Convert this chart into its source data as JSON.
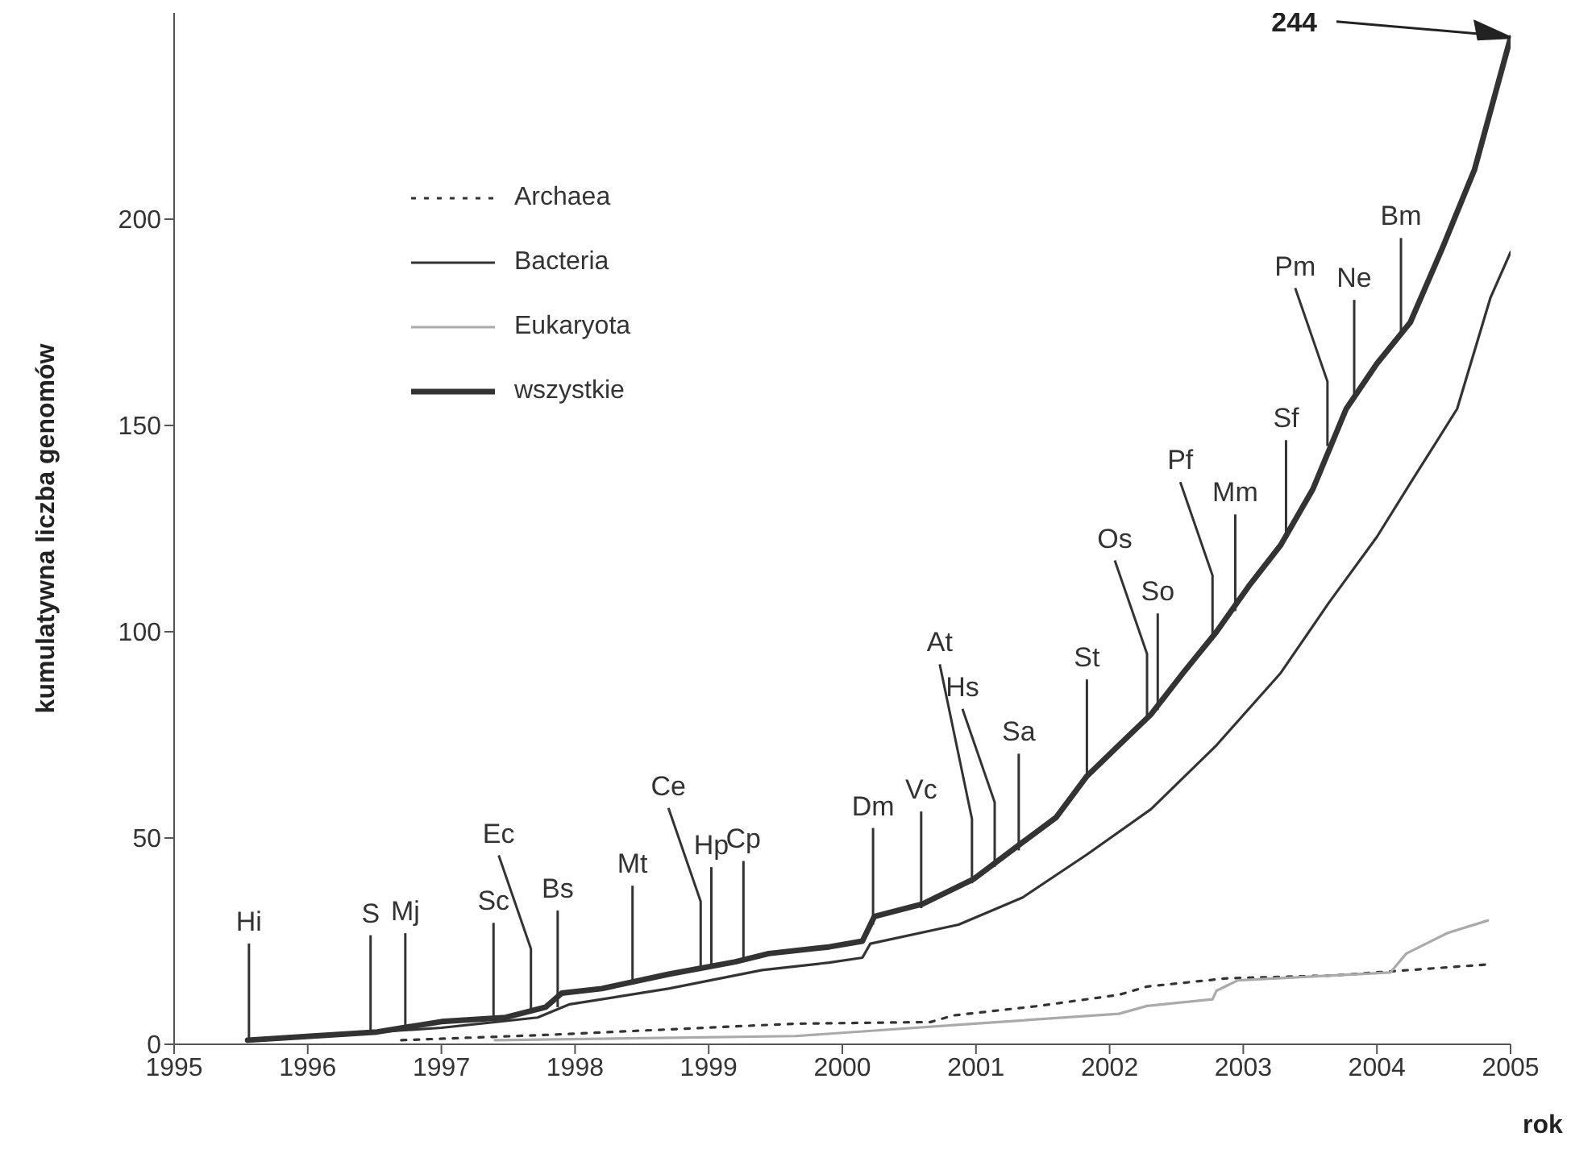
{
  "chart_data": {
    "type": "line",
    "xlabel": "rok",
    "ylabel": "kumulatywna liczba genomów",
    "xlim": [
      1995,
      2005
    ],
    "xticks": [
      1995,
      1996,
      1997,
      1998,
      1999,
      2000,
      2001,
      2002,
      2003,
      2004,
      2005
    ],
    "ylim": [
      0,
      250
    ],
    "yticks": [
      0,
      50,
      100,
      150,
      200
    ],
    "grid": false,
    "legend": "top left",
    "marker": "none",
    "series": [
      {
        "name": "Archaea",
        "color": "#333333",
        "line_style": "dotted",
        "x": [
          1996.7,
          1997.8,
          1999.65,
          2000.66,
          2000.83,
          2001.47,
          2002.07,
          2002.28,
          2002.88,
          2003.68,
          2004.85
        ],
        "values": [
          1,
          2.3,
          5,
          5.4,
          7,
          9.3,
          12,
          14,
          16,
          16.7,
          19.4
        ]
      },
      {
        "name": "Bacteria",
        "color": "#333333",
        "line_style": "solid",
        "x": [
          1995.55,
          1997,
          1997.72,
          1997.96,
          1998.7,
          1999.4,
          1999.9,
          2000.15,
          2000.21,
          2000.87,
          2001.35,
          2001.83,
          2002.31,
          2002.8,
          2003.28,
          2003.64,
          2004,
          2004.25,
          2004.6,
          2004.85,
          2005
        ],
        "values": [
          1,
          4,
          6.5,
          9.7,
          13.5,
          18,
          19.8,
          21,
          24.4,
          29,
          35.6,
          46,
          57,
          72.5,
          90,
          107,
          123,
          136,
          154,
          181,
          192
        ]
      },
      {
        "name": "Eukaryota",
        "color": "#aaaaaa",
        "line_style": "solid",
        "x": [
          1997.4,
          1999.65,
          2000.99,
          2001.35,
          2002.07,
          2002.28,
          2002.77,
          2002.8,
          2002.96,
          2004.1,
          2004.22,
          2004.53,
          2004.83
        ],
        "values": [
          1,
          2,
          5,
          5.8,
          7.4,
          9.3,
          10.9,
          13,
          15.5,
          17.4,
          22,
          27,
          30
        ]
      },
      {
        "name": "wszystkie",
        "color": "#333333",
        "line_style": "solid",
        "x": [
          1995.55,
          1996.04,
          1996.52,
          1997,
          1997.48,
          1997.78,
          1997.9,
          1998.2,
          1998.7,
          1999.2,
          1999.45,
          1999.9,
          2000.15,
          2000.24,
          2000.6,
          2000.98,
          2001.35,
          2001.6,
          2001.83,
          2002.07,
          2002.31,
          2002.55,
          2002.8,
          2003.04,
          2003.28,
          2003.52,
          2003.77,
          2004,
          2004.25,
          2004.49,
          2004.73,
          2005
        ],
        "values": [
          1,
          2,
          3,
          5.5,
          6.5,
          9,
          12.4,
          13.5,
          17,
          20,
          22,
          23.6,
          25,
          31,
          34,
          40,
          49,
          55,
          65,
          72.5,
          80,
          90,
          100,
          111,
          121,
          134.5,
          154,
          165,
          175,
          193,
          212,
          244
        ]
      }
    ],
    "annotations": [
      {
        "text": "Hi",
        "x": 1995.56,
        "y": 1
      },
      {
        "text": "S",
        "x": 1996.47,
        "y": 3
      },
      {
        "text": "Mj",
        "x": 1996.73,
        "y": 3.5
      },
      {
        "text": "Sc",
        "x": 1997.39,
        "y": 6
      },
      {
        "text": "Ec",
        "x": 1997.67,
        "y": 7.5
      },
      {
        "text": "Bs",
        "x": 1997.87,
        "y": 9
      },
      {
        "text": "Mt",
        "x": 1998.43,
        "y": 15
      },
      {
        "text": "Ce",
        "x": 1998.94,
        "y": 19
      },
      {
        "text": "Hp",
        "x": 1999.02,
        "y": 19.5
      },
      {
        "text": "Cp",
        "x": 1999.26,
        "y": 21
      },
      {
        "text": "Dm",
        "x": 2000.23,
        "y": 29
      },
      {
        "text": "Vc",
        "x": 2000.59,
        "y": 33
      },
      {
        "text": "At",
        "x": 2000.97,
        "y": 39
      },
      {
        "text": "Hs",
        "x": 2001.14,
        "y": 43
      },
      {
        "text": "Sa",
        "x": 2001.32,
        "y": 47
      },
      {
        "text": "St",
        "x": 2001.83,
        "y": 65
      },
      {
        "text": "Os",
        "x": 2002.28,
        "y": 79
      },
      {
        "text": "So",
        "x": 2002.36,
        "y": 81
      },
      {
        "text": "Pf",
        "x": 2002.77,
        "y": 98
      },
      {
        "text": "Mm",
        "x": 2002.94,
        "y": 105
      },
      {
        "text": "Sf",
        "x": 2003.32,
        "y": 123
      },
      {
        "text": "Pm",
        "x": 2003.63,
        "y": 145
      },
      {
        "text": "Ne",
        "x": 2003.83,
        "y": 157
      },
      {
        "text": "Bm",
        "x": 2004.18,
        "y": 172
      },
      {
        "text": "244",
        "x": 2005,
        "y": 244
      }
    ]
  }
}
